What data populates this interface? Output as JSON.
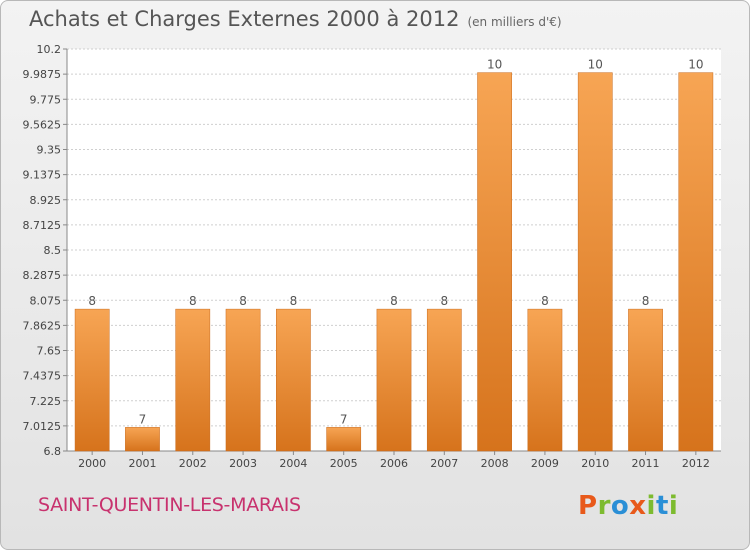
{
  "header": {
    "title": "Achats et Charges Externes 2000 à 2012",
    "unit": "(en milliers d'€)"
  },
  "footer": {
    "commune": "SAINT-QUENTIN-LES-MARAIS",
    "brand": "Proxiti"
  },
  "colors": {
    "bar_top": "#f7a554",
    "bar_bottom": "#d6731c",
    "bar_edge": "#c8691b",
    "grid": "#cfcfcf",
    "commune": "#c8326e",
    "brand_letters": [
      "#e8591a",
      "#7dbb2f",
      "#2a8fd6",
      "#e8591a",
      "#7dbb2f",
      "#2a8fd6",
      "#7dbb2f"
    ]
  },
  "chart_data": {
    "type": "bar",
    "title": "Achats et Charges Externes 2000 à 2012",
    "subtitle": "(en milliers d'€)",
    "xlabel": "",
    "ylabel": "",
    "categories": [
      "2000",
      "2001",
      "2002",
      "2003",
      "2004",
      "2005",
      "2006",
      "2007",
      "2008",
      "2009",
      "2010",
      "2011",
      "2012"
    ],
    "values": [
      8,
      7,
      8,
      8,
      8,
      7,
      8,
      8,
      10,
      8,
      10,
      8,
      10
    ],
    "data_labels": [
      "8",
      "7",
      "8",
      "8",
      "8",
      "7",
      "8",
      "8",
      "10",
      "8",
      "10",
      "8",
      "10"
    ],
    "ylim": [
      6.8,
      10.2
    ],
    "yticks": [
      6.8,
      7.0125,
      7.225,
      7.4375,
      7.65,
      7.8625,
      8.075,
      8.2875,
      8.5,
      8.7125,
      8.925,
      9.1375,
      9.35,
      9.5625,
      9.775,
      9.9875,
      10.2
    ],
    "ytick_labels": [
      "6.8",
      "7.0125",
      "7.225",
      "7.4375",
      "7.65",
      "7.8625",
      "8.075",
      "8.2875",
      "8.5",
      "8.7125",
      "8.925",
      "9.1375",
      "9.35",
      "9.5625",
      "9.775",
      "9.9875",
      "10.2"
    ],
    "grid": true,
    "legend": "none"
  }
}
